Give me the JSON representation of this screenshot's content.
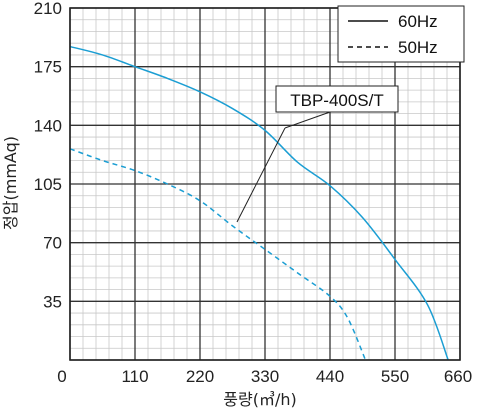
{
  "chart_data": {
    "type": "line",
    "xlabel": "풍량(㎥/h)",
    "ylabel": "정압(mmAq)",
    "xlim": [
      0,
      660
    ],
    "ylim": [
      0,
      210
    ],
    "x_ticks": [
      0,
      110,
      220,
      330,
      440,
      550,
      660
    ],
    "y_ticks": [
      0,
      35,
      70,
      105,
      140,
      175,
      210
    ],
    "grid": true,
    "legend_position": "top-right",
    "annotation": "TBP-400S/T",
    "series": [
      {
        "name": "60Hz",
        "style": "solid",
        "color": "#1b9ed3",
        "x": [
          0,
          55,
          110,
          165,
          220,
          275,
          330,
          385,
          440,
          495,
          550,
          605,
          640
        ],
        "y": [
          187,
          182,
          175,
          168,
          160,
          150,
          137,
          118,
          104,
          85,
          60,
          33,
          0
        ]
      },
      {
        "name": "50Hz",
        "style": "dashed",
        "color": "#1b9ed3",
        "x": [
          0,
          55,
          110,
          165,
          220,
          275,
          330,
          385,
          440,
          470,
          500
        ],
        "y": [
          126,
          119,
          113,
          105,
          95,
          80,
          66,
          52,
          38,
          25,
          0
        ]
      }
    ]
  }
}
